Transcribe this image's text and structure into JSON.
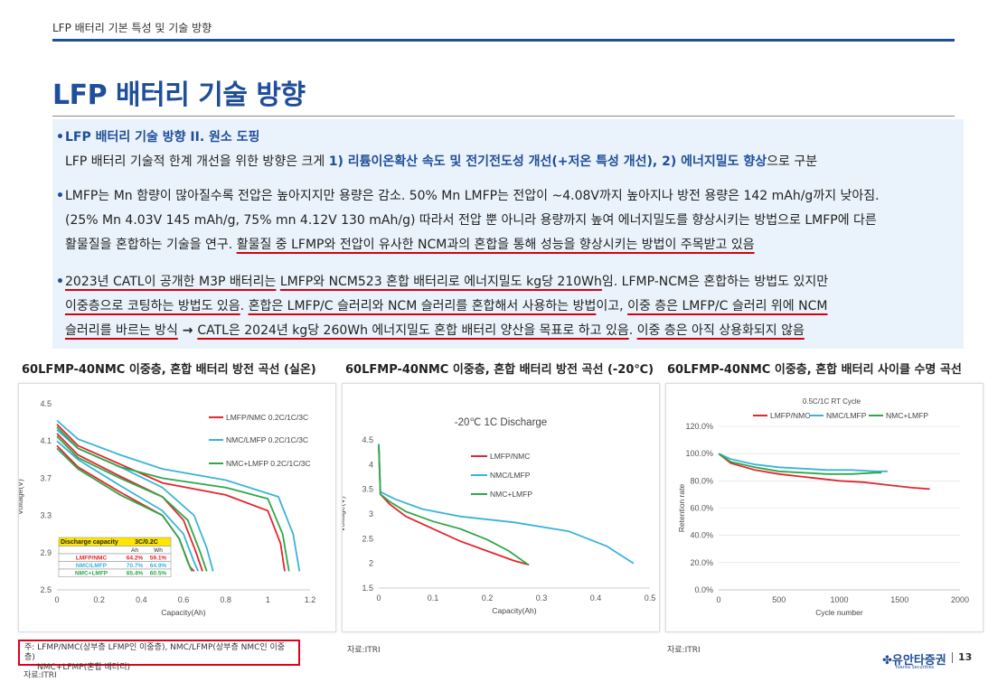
{
  "header": {
    "section_title": "LFP 배터리 기본 특성 및 기술 방향",
    "page_title": "LFP 배터리 기술 방향"
  },
  "bullets": {
    "b1": {
      "heading": "LFP 배터리 기술 방향 II. 원소 도핑",
      "text_a": "LFP 배터리 기술적 한계 개선을 위한 방향은 크게 ",
      "highlight": "1) 리튬이온확산 속도 및 전기전도성 개선(+저온 특성 개선), 2) 에너지밀도 향상",
      "text_b": "으로 구분"
    },
    "b2": {
      "line1": "LMFP는 Mn 함량이 많아질수록 전압은 높아지지만 용량은 감소. 50% Mn LMFP는 전압이 ~4.08V까지 높아지나 방전 용량은 142 mAh/g까지 낮아짐.",
      "line2": "(25% Mn 4.03V 145 mAh/g, 75% mn 4.12V 130 mAh/g) 따라서 전압 뿐 아니라 용량까지 높여 에너지밀도를 향상시키는 방법으로 LMFP에 다른",
      "line3_a": "활물질을 혼합하는 기술을 연구. ",
      "line3_u": "활물질 중 LFMP와 전압이 유사한 NCM과의 혼합을 통해 성능을 향상시키는 방법이 주목받고 있음"
    },
    "b3": {
      "l1_u1": "2023년 CATL이 공개한 M3P 배터리는",
      "l1_s1": " ",
      "l1_u2": "LMFP와 NCM523 혼합 배터리로 에너지밀도 kg당 210Wh",
      "l1_t": "임. LFMP-NCM은 혼합하는 방법도 있지만",
      "l2_u1": "이중층으로 코팅하는 방법도 있음",
      "l2_t1": ". ",
      "l2_u2": "혼합은 LMFP/C 슬러리와 NCM 슬러리를 혼합해서 사용하는 방법",
      "l2_t2": "이고, ",
      "l2_u3": "이중 층은 LMFP/C 슬러리 위에 NCM",
      "l3_u1": "슬러리를 바르는 방식",
      "l3_arrow": " → ",
      "l3_u2": "CATL은 2024년 kg당 260Wh 에너지밀도 혼합 배터리 양산을 목표로 하고 있음",
      "l3_t": ". ",
      "l3_u3": "이중 층은 아직 상용화되지 않음"
    }
  },
  "chart_titles": [
    "60LFMP-40NMC 이중층, 혼합 배터리 방전 곡선 (실온)",
    "60LFMP-40NMC 이중층, 혼합 배터리 방전 곡선 (-20℃)",
    "60LFMP-40NMC 이중층, 혼합 배터리 사이클 수명 곡선"
  ],
  "sources": [
    "자료:ITRI",
    "자료:ITRI",
    "자료:ITRI"
  ],
  "note": {
    "line1": "주: LFMP/NMC(상부층 LFMP인 이중층), NMC/LFMP(상부층 NMC인 이중층)",
    "line2": "NMC+LFMP(혼합 배터리)"
  },
  "footer": {
    "logo": "유안타증권",
    "logo_sub": "Yuanta Securities",
    "page_number": "13"
  },
  "colors": {
    "lfmp_nmc": "#e0282e",
    "nmc_lfmp": "#3bb3d8",
    "nmc_plus_lfmp": "#2ea84a",
    "accent": "#1f4e9a"
  },
  "chart_data": [
    {
      "type": "line",
      "xlabel": "Capacity(Ah)",
      "ylabel": "Voltage(V)",
      "xlim": [
        0,
        1.2
      ],
      "ylim": [
        2.5,
        4.5
      ],
      "xticks": [
        "0",
        "0.2",
        "0.4",
        "0.6",
        "0.8",
        "1",
        "1.2"
      ],
      "yticks": [
        "2.5",
        "2.9",
        "3.3",
        "3.7",
        "4.1",
        "4.5"
      ],
      "legend": [
        "LMFP/NMC 0.2C/1C/3C",
        "NMC/LMFP 0.2C/1C/3C",
        "NMC+LMFP 0.2C/1C/3C"
      ],
      "series": [
        {
          "name": "LMFP/NMC 0.2C/1C/3C",
          "color": "#e0282e",
          "curves": [
            [
              [
                0,
                4.28
              ],
              [
                0.1,
                4.05
              ],
              [
                0.3,
                3.85
              ],
              [
                0.5,
                3.65
              ],
              [
                0.8,
                3.52
              ],
              [
                1.0,
                3.35
              ],
              [
                1.06,
                3.0
              ],
              [
                1.08,
                2.7
              ]
            ],
            [
              [
                0,
                4.18
              ],
              [
                0.1,
                3.95
              ],
              [
                0.3,
                3.72
              ],
              [
                0.5,
                3.5
              ],
              [
                0.6,
                3.25
              ],
              [
                0.66,
                2.9
              ],
              [
                0.69,
                2.7
              ]
            ],
            [
              [
                0,
                4.05
              ],
              [
                0.1,
                3.82
              ],
              [
                0.3,
                3.55
              ],
              [
                0.5,
                3.3
              ],
              [
                0.58,
                3.05
              ],
              [
                0.63,
                2.75
              ],
              [
                0.65,
                2.7
              ]
            ]
          ]
        },
        {
          "name": "NMC/LMFP 0.2C/1C/3C",
          "color": "#3bb3d8",
          "curves": [
            [
              [
                0,
                4.32
              ],
              [
                0.1,
                4.12
              ],
              [
                0.3,
                3.95
              ],
              [
                0.5,
                3.8
              ],
              [
                0.8,
                3.68
              ],
              [
                1.05,
                3.5
              ],
              [
                1.12,
                3.1
              ],
              [
                1.15,
                2.7
              ]
            ],
            [
              [
                0,
                4.22
              ],
              [
                0.1,
                4.02
              ],
              [
                0.3,
                3.82
              ],
              [
                0.5,
                3.6
              ],
              [
                0.65,
                3.3
              ],
              [
                0.71,
                2.95
              ],
              [
                0.74,
                2.7
              ]
            ],
            [
              [
                0,
                4.1
              ],
              [
                0.1,
                3.9
              ],
              [
                0.3,
                3.62
              ],
              [
                0.5,
                3.35
              ],
              [
                0.6,
                3.1
              ],
              [
                0.65,
                2.8
              ],
              [
                0.67,
                2.7
              ]
            ]
          ]
        },
        {
          "name": "NMC+LMFP 0.2C/1C/3C",
          "color": "#2ea84a",
          "curves": [
            [
              [
                0,
                4.25
              ],
              [
                0.1,
                4.02
              ],
              [
                0.3,
                3.82
              ],
              [
                0.5,
                3.7
              ],
              [
                0.8,
                3.6
              ],
              [
                1.0,
                3.48
              ],
              [
                1.07,
                3.1
              ],
              [
                1.1,
                2.7
              ]
            ],
            [
              [
                0,
                4.15
              ],
              [
                0.1,
                3.92
              ],
              [
                0.3,
                3.7
              ],
              [
                0.5,
                3.5
              ],
              [
                0.62,
                3.25
              ],
              [
                0.68,
                2.9
              ],
              [
                0.71,
                2.7
              ]
            ],
            [
              [
                0,
                4.02
              ],
              [
                0.1,
                3.8
              ],
              [
                0.3,
                3.52
              ],
              [
                0.5,
                3.3
              ],
              [
                0.58,
                3.05
              ],
              [
                0.62,
                2.8
              ],
              [
                0.64,
                2.7
              ]
            ]
          ]
        }
      ],
      "table": {
        "header": [
          "Discharge capacity",
          "3C/0.2C"
        ],
        "subheader": [
          "",
          "Ah",
          "Wh"
        ],
        "rows": [
          {
            "label": "LMFP/NMC",
            "ah": "64.2%",
            "wh": "59.1%",
            "color": "#e0282e"
          },
          {
            "label": "NMC/LMFP",
            "ah": "70.7%",
            "wh": "64.9%",
            "color": "#3bb3d8"
          },
          {
            "label": "NMC+LMFP",
            "ah": "65.4%",
            "wh": "60.5%",
            "color": "#2ea84a"
          }
        ]
      }
    },
    {
      "type": "line",
      "title": "-20℃ 1C Discharge",
      "xlabel": "Capacity(Ah)",
      "ylabel": "Voltage(V)",
      "xlim": [
        0,
        0.5
      ],
      "ylim": [
        1.5,
        4.5
      ],
      "xticks": [
        "0",
        "0.1",
        "0.2",
        "0.3",
        "0.4",
        "0.5"
      ],
      "yticks": [
        "1.5",
        "2",
        "2.5",
        "3",
        "3.5",
        "4",
        "4.5"
      ],
      "legend": [
        "LMFP/NMC",
        "NMC/LMFP",
        "NMC+LMFP"
      ],
      "series": [
        {
          "name": "LMFP/NMC",
          "color": "#e0282e",
          "points": [
            [
              0,
              4.4
            ],
            [
              0.003,
              3.4
            ],
            [
              0.02,
              3.2
            ],
            [
              0.05,
              2.95
            ],
            [
              0.1,
              2.7
            ],
            [
              0.15,
              2.45
            ],
            [
              0.2,
              2.25
            ],
            [
              0.25,
              2.05
            ],
            [
              0.277,
              1.97
            ]
          ]
        },
        {
          "name": "NMC/LMFP",
          "color": "#3bb3d8",
          "points": [
            [
              0,
              4.42
            ],
            [
              0.003,
              3.45
            ],
            [
              0.03,
              3.3
            ],
            [
              0.08,
              3.1
            ],
            [
              0.15,
              2.95
            ],
            [
              0.25,
              2.83
            ],
            [
              0.35,
              2.65
            ],
            [
              0.42,
              2.35
            ],
            [
              0.47,
              2.0
            ]
          ]
        },
        {
          "name": "NMC+LMFP",
          "color": "#2ea84a",
          "points": [
            [
              0,
              4.4
            ],
            [
              0.003,
              3.4
            ],
            [
              0.02,
              3.25
            ],
            [
              0.05,
              3.05
            ],
            [
              0.1,
              2.85
            ],
            [
              0.15,
              2.7
            ],
            [
              0.2,
              2.48
            ],
            [
              0.24,
              2.25
            ],
            [
              0.276,
              1.97
            ]
          ]
        }
      ]
    },
    {
      "type": "line",
      "title": "0.5C/1C RT Cycle",
      "xlabel": "Cycle number",
      "ylabel": "Retention rate",
      "xlim": [
        0,
        2000
      ],
      "ylim": [
        0,
        120
      ],
      "xticks": [
        "0",
        "500",
        "1000",
        "1500",
        "2000"
      ],
      "yticks": [
        "0.0%",
        "20.0%",
        "40.0%",
        "60.0%",
        "80.0%",
        "100.0%",
        "120.0%"
      ],
      "legend": [
        "LMFP/NMC",
        "NMC/LMFP",
        "NMC+LMFP"
      ],
      "series": [
        {
          "name": "LMFP/NMC",
          "color": "#e0282e",
          "points": [
            [
              0,
              100
            ],
            [
              100,
              93
            ],
            [
              300,
              88
            ],
            [
              500,
              85
            ],
            [
              800,
              82
            ],
            [
              1000,
              80
            ],
            [
              1200,
              79
            ],
            [
              1400,
              77
            ],
            [
              1600,
              75
            ],
            [
              1750,
              74
            ]
          ]
        },
        {
          "name": "NMC/LMFP",
          "color": "#3bb3d8",
          "points": [
            [
              0,
              100
            ],
            [
              100,
              96
            ],
            [
              300,
              92
            ],
            [
              500,
              90
            ],
            [
              700,
              89
            ],
            [
              900,
              88
            ],
            [
              1100,
              88
            ],
            [
              1300,
              87
            ],
            [
              1400,
              87
            ]
          ]
        },
        {
          "name": "NMC+LMFP",
          "color": "#2ea84a",
          "points": [
            [
              0,
              100
            ],
            [
              100,
              94
            ],
            [
              300,
              90
            ],
            [
              500,
              87
            ],
            [
              700,
              86
            ],
            [
              900,
              85
            ],
            [
              1100,
              85
            ],
            [
              1300,
              86
            ],
            [
              1350,
              86
            ]
          ]
        }
      ]
    }
  ]
}
